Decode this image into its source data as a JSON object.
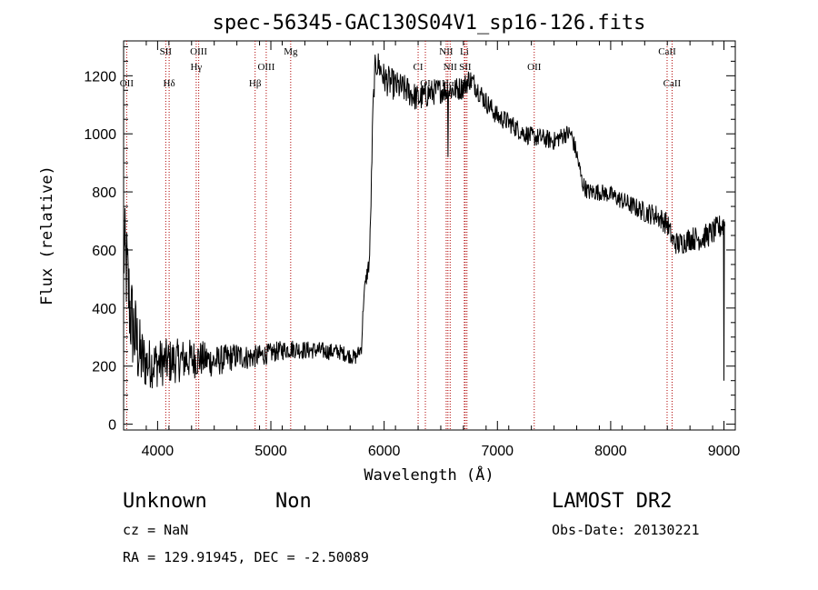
{
  "chart_data": {
    "type": "line",
    "title": "spec-56345-GAC130S04V1_sp16-126.fits",
    "xlabel": "Wavelength (Å)",
    "ylabel": "Flux (relative)",
    "xlim": [
      3700,
      9100
    ],
    "ylim": [
      -20,
      1320
    ],
    "xticks": [
      4000,
      5000,
      6000,
      7000,
      8000,
      9000
    ],
    "yticks": [
      0,
      200,
      400,
      600,
      800,
      1000,
      1200
    ],
    "grid": false,
    "line_color": "#000000",
    "marker_color": "#b00000",
    "spectrum_anchors": [
      [
        3700,
        600
      ],
      [
        3730,
        520
      ],
      [
        3760,
        380
      ],
      [
        3800,
        300
      ],
      [
        3850,
        230
      ],
      [
        3900,
        210
      ],
      [
        4000,
        210
      ],
      [
        4100,
        215
      ],
      [
        4200,
        220
      ],
      [
        4300,
        225
      ],
      [
        4400,
        225
      ],
      [
        4500,
        215
      ],
      [
        4600,
        225
      ],
      [
        4700,
        235
      ],
      [
        4800,
        230
      ],
      [
        4900,
        235
      ],
      [
        5000,
        245
      ],
      [
        5100,
        255
      ],
      [
        5200,
        260
      ],
      [
        5300,
        255
      ],
      [
        5400,
        255
      ],
      [
        5500,
        250
      ],
      [
        5600,
        250
      ],
      [
        5700,
        235
      ],
      [
        5750,
        230
      ],
      [
        5800,
        265
      ],
      [
        5820,
        440
      ],
      [
        5850,
        520
      ],
      [
        5870,
        560
      ],
      [
        5880,
        700
      ],
      [
        5890,
        880
      ],
      [
        5900,
        1070
      ],
      [
        5920,
        1230
      ],
      [
        5950,
        1240
      ],
      [
        6000,
        1190
      ],
      [
        6100,
        1165
      ],
      [
        6200,
        1150
      ],
      [
        6300,
        1120
      ],
      [
        6400,
        1140
      ],
      [
        6500,
        1150
      ],
      [
        6600,
        1150
      ],
      [
        6700,
        1160
      ],
      [
        6750,
        1190
      ],
      [
        6800,
        1170
      ],
      [
        6900,
        1110
      ],
      [
        7000,
        1060
      ],
      [
        7100,
        1040
      ],
      [
        7200,
        1010
      ],
      [
        7300,
        990
      ],
      [
        7400,
        985
      ],
      [
        7500,
        975
      ],
      [
        7600,
        1000
      ],
      [
        7650,
        1000
      ],
      [
        7700,
        930
      ],
      [
        7750,
        830
      ],
      [
        7800,
        800
      ],
      [
        7900,
        800
      ],
      [
        8000,
        790
      ],
      [
        8100,
        770
      ],
      [
        8200,
        750
      ],
      [
        8300,
        730
      ],
      [
        8400,
        720
      ],
      [
        8500,
        690
      ],
      [
        8550,
        630
      ],
      [
        8600,
        620
      ],
      [
        8700,
        640
      ],
      [
        8800,
        640
      ],
      [
        8900,
        660
      ],
      [
        9000,
        690
      ]
    ],
    "noise_amplitude": [
      [
        3700,
        180
      ],
      [
        3800,
        160
      ],
      [
        3900,
        90
      ],
      [
        4100,
        80
      ],
      [
        4300,
        70
      ],
      [
        4500,
        55
      ],
      [
        5000,
        35
      ],
      [
        5500,
        30
      ],
      [
        5800,
        25
      ],
      [
        6000,
        55
      ],
      [
        6500,
        45
      ],
      [
        7000,
        35
      ],
      [
        8000,
        30
      ],
      [
        8500,
        40
      ],
      [
        9000,
        45
      ]
    ],
    "spikes": [
      {
        "x": 6563,
        "y": 920
      },
      {
        "x": 9000,
        "y": 150
      }
    ],
    "lines": [
      {
        "label": "OII",
        "x": 3727,
        "row": 2
      },
      {
        "label": "SII",
        "x": 4072,
        "row": 0
      },
      {
        "label": "Hδ",
        "x": 4102,
        "row": 2
      },
      {
        "label": "OIII",
        "x": 4363,
        "row": 0
      },
      {
        "label": "Hγ",
        "x": 4341,
        "row": 1
      },
      {
        "label": "OIII",
        "x": 4959,
        "row": 1
      },
      {
        "label": "Hβ",
        "x": 4861,
        "row": 2
      },
      {
        "label": "Mg",
        "x": 5175,
        "row": 0
      },
      {
        "label": "CI",
        "x": 6300,
        "row": 1
      },
      {
        "label": "OI",
        "x": 6364,
        "row": 2
      },
      {
        "label": "NII",
        "x": 6548,
        "row": 0
      },
      {
        "label": "Li",
        "x": 6708,
        "row": 0
      },
      {
        "label": "NII",
        "x": 6583,
        "row": 1
      },
      {
        "label": "SII",
        "x": 6716,
        "row": 1
      },
      {
        "label": "Hα",
        "x": 6563,
        "row": 2
      },
      {
        "label": "SII",
        "x": 6731,
        "row": 2
      },
      {
        "label": "OII",
        "x": 7325,
        "row": 1
      },
      {
        "label": "CaII",
        "x": 8498,
        "row": 0
      },
      {
        "label": "CaII",
        "x": 8542,
        "row": 2
      }
    ]
  },
  "info": {
    "class": "Unknown",
    "subclass": "Non",
    "cz": "cz = NaN",
    "coords": "RA = 129.91945, DEC =  -2.50089",
    "survey": "LAMOST DR2",
    "obs_date": "Obs-Date: 20130221"
  }
}
